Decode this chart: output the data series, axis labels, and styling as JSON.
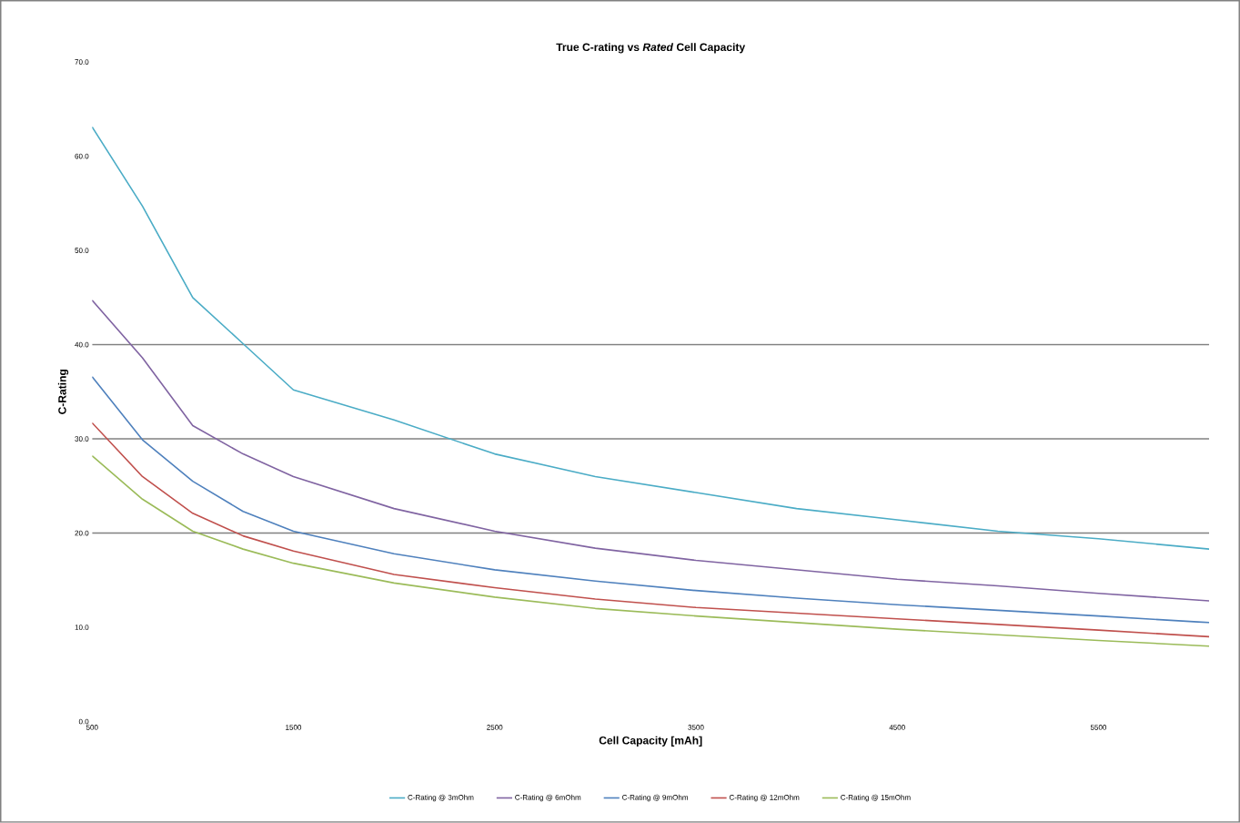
{
  "chart_data": {
    "type": "line",
    "title": "True C-rating vs *Rated* Cell Capacity",
    "xlabel": "Cell Capacity [mAh]",
    "ylabel": "C-Rating",
    "x": [
      500,
      750,
      1000,
      1250,
      1500,
      2000,
      2500,
      3000,
      3500,
      4000,
      4500,
      5000,
      5500,
      6050
    ],
    "series": [
      {
        "name": "C-Rating @ 3mOhm",
        "color": "#4bacc6",
        "values": [
          63.1,
          54.7,
          45.0,
          40.1,
          35.2,
          32.0,
          28.4,
          26.0,
          24.3,
          22.6,
          21.4,
          20.2,
          19.4,
          18.3
        ]
      },
      {
        "name": "C-Rating @ 6mOhm",
        "color": "#8064a2",
        "values": [
          44.7,
          38.6,
          31.4,
          28.4,
          26.0,
          22.6,
          20.2,
          18.4,
          17.1,
          16.1,
          15.1,
          14.4,
          13.6,
          12.8
        ]
      },
      {
        "name": "C-Rating @ 9mOhm",
        "color": "#4f81bd",
        "values": [
          36.6,
          29.9,
          25.5,
          22.3,
          20.2,
          17.8,
          16.1,
          14.9,
          13.9,
          13.1,
          12.4,
          11.8,
          11.2,
          10.5
        ]
      },
      {
        "name": "C-Rating @ 12mOhm",
        "color": "#c0504d",
        "values": [
          31.7,
          26.0,
          22.1,
          19.7,
          18.1,
          15.6,
          14.2,
          13.0,
          12.1,
          11.5,
          10.9,
          10.3,
          9.7,
          9.0
        ]
      },
      {
        "name": "C-Rating @ 15mOhm",
        "color": "#9bbb59",
        "values": [
          28.2,
          23.6,
          20.2,
          18.3,
          16.8,
          14.7,
          13.2,
          12.0,
          11.2,
          10.5,
          9.8,
          9.2,
          8.6,
          8.0
        ]
      }
    ],
    "xlim": [
      500,
      6050
    ],
    "xticks": [
      500,
      1500,
      2500,
      3500,
      4500,
      5500
    ],
    "ylim": [
      0,
      70
    ],
    "yticks": [
      {
        "value": 0,
        "label": "0.0"
      },
      {
        "value": 10,
        "label": "10.0"
      },
      {
        "value": 20,
        "label": "20.0"
      },
      {
        "value": 30,
        "label": "30.0"
      },
      {
        "value": 40,
        "label": "40.0"
      },
      {
        "value": 50,
        "label": "50.0"
      },
      {
        "value": 60,
        "label": "60.0"
      },
      {
        "value": 70,
        "label": "70.0"
      }
    ],
    "ref_lines": [
      {
        "axis": "y",
        "value": 20,
        "color": "#808080"
      },
      {
        "axis": "y",
        "value": 30,
        "color": "#808080"
      },
      {
        "axis": "y",
        "value": 40,
        "color": "#808080"
      }
    ],
    "legend": "bottom",
    "marker": "none",
    "line_style": "solid",
    "grid": false
  }
}
